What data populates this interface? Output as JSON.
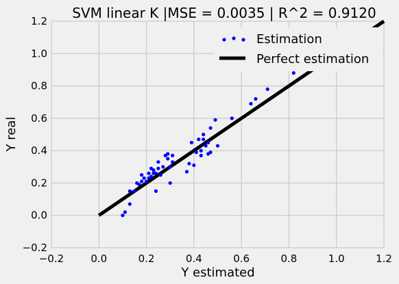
{
  "chart_data": {
    "type": "scatter",
    "title": "SVM linear K |MSE = 0.0035 | R^2 = 0.9120",
    "xlabel": "Y estimated",
    "ylabel": "Y real",
    "xlim": [
      -0.2,
      1.2
    ],
    "ylim": [
      -0.2,
      1.2
    ],
    "xticks": [
      -0.2,
      0.0,
      0.2,
      0.4,
      0.6,
      0.8,
      1.0,
      1.2
    ],
    "yticks": [
      -0.2,
      0.0,
      0.2,
      0.4,
      0.6,
      0.8,
      1.0,
      1.2
    ],
    "xtick_labels": [
      "−0.2",
      "0.0",
      "0.2",
      "0.4",
      "0.6",
      "0.8",
      "1.0",
      "1.2"
    ],
    "ytick_labels": [
      "−0.2",
      "0.0",
      "0.2",
      "0.4",
      "0.6",
      "0.8",
      "1.0",
      "1.2"
    ],
    "grid": true,
    "legend_position": "top-right",
    "series": [
      {
        "name": "Estimation",
        "kind": "scatter",
        "color": "#0000ff",
        "points": [
          [
            0.1,
            0.0
          ],
          [
            0.11,
            0.02
          ],
          [
            0.13,
            0.07
          ],
          [
            0.13,
            0.15
          ],
          [
            0.15,
            0.15
          ],
          [
            0.16,
            0.2
          ],
          [
            0.17,
            0.19
          ],
          [
            0.18,
            0.21
          ],
          [
            0.18,
            0.25
          ],
          [
            0.19,
            0.23
          ],
          [
            0.2,
            0.21
          ],
          [
            0.21,
            0.23
          ],
          [
            0.21,
            0.26
          ],
          [
            0.22,
            0.29
          ],
          [
            0.22,
            0.24
          ],
          [
            0.23,
            0.28
          ],
          [
            0.23,
            0.26
          ],
          [
            0.24,
            0.15
          ],
          [
            0.24,
            0.26
          ],
          [
            0.25,
            0.29
          ],
          [
            0.25,
            0.33
          ],
          [
            0.26,
            0.25
          ],
          [
            0.27,
            0.3
          ],
          [
            0.28,
            0.37
          ],
          [
            0.29,
            0.38
          ],
          [
            0.29,
            0.35
          ],
          [
            0.3,
            0.2
          ],
          [
            0.3,
            0.3
          ],
          [
            0.31,
            0.37
          ],
          [
            0.31,
            0.33
          ],
          [
            0.37,
            0.27
          ],
          [
            0.38,
            0.32
          ],
          [
            0.39,
            0.45
          ],
          [
            0.4,
            0.31
          ],
          [
            0.41,
            0.39
          ],
          [
            0.42,
            0.47
          ],
          [
            0.43,
            0.4
          ],
          [
            0.43,
            0.37
          ],
          [
            0.44,
            0.47
          ],
          [
            0.44,
            0.5
          ],
          [
            0.45,
            0.43
          ],
          [
            0.46,
            0.45
          ],
          [
            0.46,
            0.38
          ],
          [
            0.47,
            0.39
          ],
          [
            0.47,
            0.54
          ],
          [
            0.49,
            0.59
          ],
          [
            0.5,
            0.43
          ],
          [
            0.56,
            0.6
          ],
          [
            0.64,
            0.69
          ],
          [
            0.66,
            0.72
          ],
          [
            0.71,
            0.78
          ],
          [
            0.82,
            0.88
          ]
        ]
      },
      {
        "name": "Perfect estimation",
        "kind": "line",
        "color": "#000000",
        "points": [
          [
            0.0,
            0.0
          ],
          [
            1.2,
            1.2
          ]
        ]
      }
    ]
  }
}
